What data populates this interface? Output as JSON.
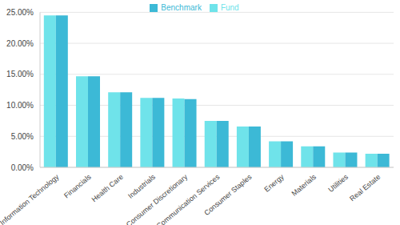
{
  "chart_data": {
    "type": "bar",
    "categories": [
      "Information Technology",
      "Financials",
      "Health Care",
      "Industrials",
      "Consumer Discretionary",
      "Communication Services",
      "Consumer Staples",
      "Energy",
      "Materials",
      "Utilities",
      "Real Estate"
    ],
    "series": [
      {
        "name": "Fund",
        "color": "#6fe3ea",
        "values": [
          24.5,
          14.7,
          12.1,
          11.2,
          11.1,
          7.5,
          6.6,
          4.2,
          3.4,
          2.4,
          2.2
        ]
      },
      {
        "name": "Benchmark",
        "color": "#3cb9d6",
        "values": [
          24.5,
          14.7,
          12.1,
          11.2,
          11.0,
          7.5,
          6.6,
          4.2,
          3.4,
          2.4,
          2.2
        ]
      }
    ],
    "ylim": [
      0,
      25
    ],
    "yticks": [
      {
        "value": 0,
        "label": "0.00%"
      },
      {
        "value": 5,
        "label": "5.00%"
      },
      {
        "value": 10,
        "label": "10.00%"
      },
      {
        "value": 15,
        "label": "15.00%"
      },
      {
        "value": 20,
        "label": "20.00%"
      },
      {
        "value": 25,
        "label": "25.00%"
      }
    ],
    "grid": true,
    "legend": "top"
  }
}
